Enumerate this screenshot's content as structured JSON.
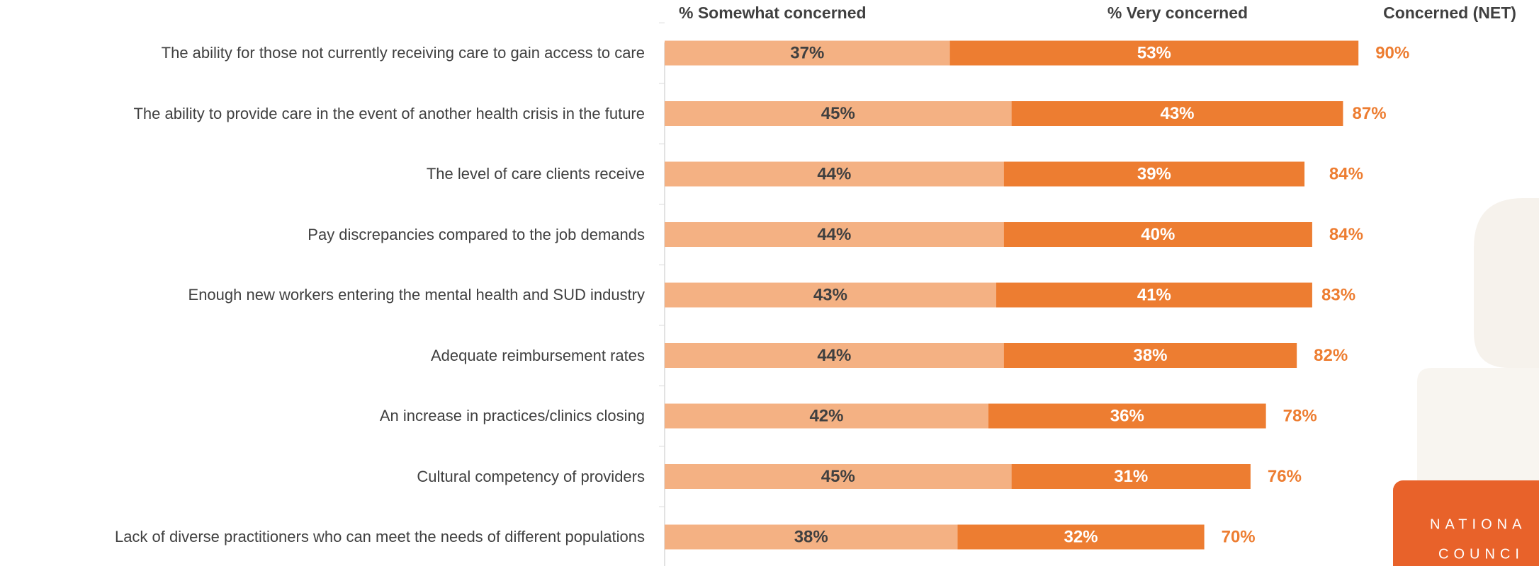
{
  "chart_data": {
    "type": "stacked-bar-horizontal",
    "categories": [
      "The ability for those not currently receiving care to gain access to care",
      "The ability to provide care in the event of another health crisis in the future",
      "The level of care clients receive",
      "Pay discrepancies compared to the job demands",
      "Enough new workers entering the mental health and SUD industry",
      "Adequate reimbursement rates",
      "An increase in practices/clinics closing",
      "Cultural competency of providers",
      "Lack of diverse practitioners who can meet the needs of different populations"
    ],
    "series": [
      {
        "name": "% Somewhat concerned",
        "color": "#f4b183",
        "label_color": "#404040",
        "values": [
          37,
          45,
          44,
          44,
          43,
          44,
          42,
          45,
          38
        ],
        "value_labels": [
          "37%",
          "45%",
          "44%",
          "44%",
          "43%",
          "44%",
          "42%",
          "45%",
          "38%"
        ]
      },
      {
        "name": "% Very concerned",
        "color": "#ed7d31",
        "label_color": "#ffffff",
        "values": [
          53,
          43,
          39,
          40,
          41,
          38,
          36,
          31,
          32
        ],
        "value_labels": [
          "53%",
          "43%",
          "39%",
          "40%",
          "41%",
          "38%",
          "36%",
          "31%",
          "32%"
        ]
      }
    ],
    "net": {
      "name": "Concerned (NET)",
      "color": "#ed7d31",
      "values": [
        90,
        87,
        84,
        84,
        83,
        82,
        78,
        76,
        70
      ],
      "value_labels": [
        "90%",
        "87%",
        "84%",
        "84%",
        "83%",
        "82%",
        "78%",
        "76%",
        "70%"
      ]
    },
    "logo_text": [
      "NATIONA",
      "COUNCI"
    ]
  }
}
